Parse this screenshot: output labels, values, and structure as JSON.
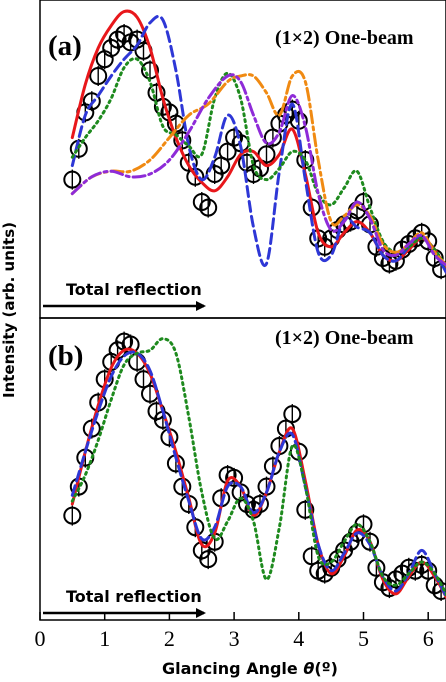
{
  "chart_data": [
    {
      "type": "line",
      "panel_label": "(a)",
      "title": "(1×2) One-beam",
      "annotation": "Total reflection",
      "xlim": [
        0,
        6.3
      ],
      "series": [
        {
          "style": "circles",
          "color": "#000000",
          "x": [
            0.5,
            0.6,
            0.7,
            0.8,
            0.9,
            1.0,
            1.1,
            1.2,
            1.3,
            1.4,
            1.5,
            1.6,
            1.7,
            1.8,
            1.9,
            2.0,
            2.1,
            2.2,
            2.3,
            2.4,
            2.5,
            2.6,
            2.7,
            2.8,
            2.9,
            3.0,
            3.1,
            3.2,
            3.3,
            3.4,
            3.5,
            3.6,
            3.7,
            3.8,
            3.9,
            4.0,
            4.1,
            4.2,
            4.3,
            4.4,
            4.5,
            4.6,
            4.7,
            4.8,
            4.9,
            5.0,
            5.1,
            5.2,
            5.3,
            5.4,
            5.5,
            5.6,
            5.7,
            5.8,
            5.9,
            6.0,
            6.1,
            6.2
          ],
          "y": [
            0.43,
            0.54,
            0.67,
            0.71,
            0.8,
            0.86,
            0.9,
            0.93,
            0.95,
            0.92,
            0.93,
            0.89,
            0.82,
            0.74,
            0.69,
            0.67,
            0.63,
            0.57,
            0.49,
            0.44,
            0.35,
            0.33,
            0.45,
            0.48,
            0.53,
            0.58,
            0.56,
            0.49,
            0.45,
            0.47,
            0.52,
            0.58,
            0.63,
            0.66,
            0.68,
            0.64,
            0.5,
            0.33,
            0.22,
            0.19,
            0.22,
            0.25,
            0.27,
            0.28,
            0.32,
            0.35,
            0.27,
            0.19,
            0.15,
            0.13,
            0.14,
            0.18,
            0.2,
            0.22,
            0.24,
            0.21,
            0.15,
            0.11
          ]
        },
        {
          "style": "solid",
          "color": "#e8171b",
          "x": [
            0.5,
            0.7,
            0.9,
            1.1,
            1.3,
            1.5,
            1.7,
            1.9,
            2.1,
            2.3,
            2.5,
            2.7,
            2.9,
            3.1,
            3.3,
            3.5,
            3.7,
            3.9,
            4.1,
            4.3,
            4.5,
            4.7,
            4.9,
            5.1,
            5.3,
            5.5,
            5.7,
            5.9,
            6.1,
            6.3
          ],
          "y": [
            0.58,
            0.77,
            0.9,
            0.98,
            1.03,
            1.01,
            0.9,
            0.72,
            0.58,
            0.48,
            0.42,
            0.39,
            0.44,
            0.52,
            0.53,
            0.48,
            0.52,
            0.61,
            0.45,
            0.24,
            0.19,
            0.24,
            0.28,
            0.24,
            0.16,
            0.14,
            0.18,
            0.22,
            0.18,
            0.1
          ]
        },
        {
          "style": "dashed",
          "color": "#2e37d6",
          "x": [
            0.5,
            0.7,
            0.9,
            1.1,
            1.3,
            1.5,
            1.7,
            1.9,
            2.1,
            2.3,
            2.5,
            2.7,
            2.9,
            3.1,
            3.3,
            3.5,
            3.7,
            3.9,
            4.1,
            4.3,
            4.5,
            4.7,
            4.9,
            5.1,
            5.3,
            5.5,
            5.7,
            5.9,
            6.1,
            6.3
          ],
          "y": [
            0.48,
            0.66,
            0.73,
            0.8,
            0.86,
            0.91,
            0.99,
            1.0,
            0.82,
            0.55,
            0.43,
            0.51,
            0.66,
            0.55,
            0.26,
            0.13,
            0.46,
            0.7,
            0.43,
            0.17,
            0.16,
            0.29,
            0.26,
            0.24,
            0.16,
            0.14,
            0.19,
            0.23,
            0.17,
            0.09
          ]
        },
        {
          "style": "dotted",
          "color": "#1e8a1e",
          "x": [
            0.5,
            0.7,
            0.9,
            1.1,
            1.3,
            1.5,
            1.7,
            1.9,
            2.1,
            2.3,
            2.5,
            2.7,
            2.9,
            3.1,
            3.3,
            3.5,
            3.7,
            3.9,
            4.1,
            4.3,
            4.5,
            4.7,
            4.9,
            5.1,
            5.3,
            5.5,
            5.7,
            5.9,
            6.1,
            6.3
          ],
          "y": [
            0.51,
            0.58,
            0.64,
            0.72,
            0.83,
            0.86,
            0.78,
            0.62,
            0.59,
            0.55,
            0.52,
            0.72,
            0.81,
            0.72,
            0.48,
            0.43,
            0.47,
            0.53,
            0.5,
            0.38,
            0.34,
            0.4,
            0.46,
            0.33,
            0.21,
            0.17,
            0.19,
            0.22,
            0.18,
            0.11
          ]
        },
        {
          "style": "dash-dot",
          "color": "#f08a12",
          "x": [
            0.5,
            0.8,
            1.1,
            1.4,
            1.7,
            2.0,
            2.3,
            2.6,
            2.9,
            3.1,
            3.3,
            3.5,
            3.7,
            3.9,
            4.1,
            4.3,
            4.5,
            4.7,
            4.9,
            5.1,
            5.3,
            5.5,
            5.7,
            5.9,
            6.1,
            6.3
          ],
          "y": [
            0.38,
            0.44,
            0.46,
            0.46,
            0.5,
            0.58,
            0.66,
            0.7,
            0.78,
            0.8,
            0.8,
            0.74,
            0.66,
            0.8,
            0.78,
            0.5,
            0.28,
            0.3,
            0.34,
            0.3,
            0.2,
            0.17,
            0.2,
            0.24,
            0.17,
            0.12
          ]
        },
        {
          "style": "dash-dot",
          "color": "#8e2bd8",
          "x": [
            0.5,
            0.8,
            1.1,
            1.4,
            1.7,
            2.0,
            2.3,
            2.6,
            2.9,
            3.1,
            3.3,
            3.5,
            3.7,
            3.9,
            4.1,
            4.3,
            4.5,
            4.7,
            4.9,
            5.1,
            5.3,
            5.5,
            5.7,
            5.9,
            6.1,
            6.3
          ],
          "y": [
            0.38,
            0.44,
            0.46,
            0.44,
            0.45,
            0.5,
            0.6,
            0.72,
            0.8,
            0.78,
            0.66,
            0.56,
            0.6,
            0.73,
            0.62,
            0.38,
            0.25,
            0.28,
            0.35,
            0.29,
            0.18,
            0.16,
            0.2,
            0.23,
            0.16,
            0.12
          ]
        }
      ]
    },
    {
      "type": "line",
      "panel_label": "(b)",
      "title": "(1×2) One-beam",
      "annotation": "Total reflection",
      "xlim": [
        0,
        6.3
      ],
      "xlabel_prefix": "Glancing Angle ",
      "xlabel_symbol": "θ",
      "xlabel_suffix": "(º)",
      "xticks": [
        "0",
        "1",
        "2",
        "3",
        "4",
        "5",
        "6"
      ],
      "series": [
        {
          "style": "circles",
          "color": "#000000",
          "x": [
            0.5,
            0.6,
            0.7,
            0.8,
            0.9,
            1.0,
            1.1,
            1.2,
            1.3,
            1.4,
            1.5,
            1.6,
            1.7,
            1.8,
            1.9,
            2.0,
            2.1,
            2.2,
            2.3,
            2.4,
            2.5,
            2.6,
            2.7,
            2.8,
            2.9,
            3.0,
            3.1,
            3.2,
            3.3,
            3.4,
            3.5,
            3.6,
            3.7,
            3.8,
            3.9,
            4.0,
            4.1,
            4.2,
            4.3,
            4.4,
            4.5,
            4.6,
            4.7,
            4.8,
            4.9,
            5.0,
            5.1,
            5.2,
            5.3,
            5.4,
            5.5,
            5.6,
            5.7,
            5.8,
            5.9,
            6.0,
            6.1,
            6.2
          ],
          "y": [
            0.36,
            0.46,
            0.56,
            0.66,
            0.75,
            0.83,
            0.89,
            0.93,
            0.96,
            0.95,
            0.89,
            0.83,
            0.78,
            0.72,
            0.69,
            0.63,
            0.54,
            0.46,
            0.4,
            0.32,
            0.24,
            0.21,
            0.27,
            0.42,
            0.5,
            0.49,
            0.44,
            0.4,
            0.38,
            0.4,
            0.46,
            0.53,
            0.6,
            0.66,
            0.71,
            0.58,
            0.38,
            0.22,
            0.17,
            0.16,
            0.18,
            0.21,
            0.24,
            0.27,
            0.3,
            0.33,
            0.27,
            0.18,
            0.13,
            0.11,
            0.14,
            0.16,
            0.18,
            0.17,
            0.19,
            0.17,
            0.12,
            0.1
          ]
        },
        {
          "style": "solid",
          "color": "#e8171b",
          "x": [
            0.5,
            0.7,
            0.9,
            1.1,
            1.3,
            1.5,
            1.7,
            1.9,
            2.1,
            2.3,
            2.5,
            2.7,
            2.9,
            3.1,
            3.3,
            3.5,
            3.7,
            3.9,
            4.1,
            4.3,
            4.5,
            4.7,
            4.9,
            5.1,
            5.3,
            5.5,
            5.7,
            5.9,
            6.1,
            6.3
          ],
          "y": [
            0.4,
            0.58,
            0.74,
            0.87,
            0.93,
            0.92,
            0.85,
            0.72,
            0.58,
            0.42,
            0.26,
            0.3,
            0.48,
            0.46,
            0.36,
            0.44,
            0.58,
            0.66,
            0.48,
            0.26,
            0.16,
            0.22,
            0.31,
            0.27,
            0.14,
            0.09,
            0.15,
            0.2,
            0.15,
            0.07
          ]
        },
        {
          "style": "dashed",
          "color": "#2e37d6",
          "x": [
            0.5,
            0.7,
            0.9,
            1.1,
            1.3,
            1.5,
            1.7,
            1.9,
            2.1,
            2.3,
            2.5,
            2.7,
            2.9,
            3.1,
            3.3,
            3.5,
            3.7,
            3.9,
            4.1,
            4.3,
            4.5,
            4.7,
            4.9,
            5.1,
            5.3,
            5.5,
            5.7,
            5.9,
            6.1,
            6.3
          ],
          "y": [
            0.43,
            0.58,
            0.72,
            0.84,
            0.91,
            0.92,
            0.86,
            0.72,
            0.56,
            0.41,
            0.28,
            0.32,
            0.46,
            0.46,
            0.37,
            0.44,
            0.58,
            0.64,
            0.46,
            0.26,
            0.17,
            0.23,
            0.3,
            0.26,
            0.15,
            0.1,
            0.16,
            0.24,
            0.16,
            0.07
          ]
        },
        {
          "style": "dotted",
          "color": "#1e8a1e",
          "x": [
            0.5,
            0.7,
            0.9,
            1.1,
            1.3,
            1.5,
            1.7,
            1.9,
            2.1,
            2.3,
            2.5,
            2.7,
            2.9,
            3.1,
            3.3,
            3.5,
            3.7,
            3.9,
            4.1,
            4.3,
            4.5,
            4.7,
            4.9,
            5.1,
            5.3,
            5.5,
            5.7,
            5.9,
            6.1,
            6.3
          ],
          "y": [
            0.41,
            0.5,
            0.62,
            0.76,
            0.88,
            0.92,
            0.93,
            0.97,
            0.92,
            0.7,
            0.44,
            0.28,
            0.34,
            0.42,
            0.34,
            0.14,
            0.32,
            0.6,
            0.46,
            0.22,
            0.2,
            0.27,
            0.33,
            0.27,
            0.15,
            0.12,
            0.16,
            0.2,
            0.16,
            0.08
          ]
        }
      ]
    }
  ],
  "axis": {
    "ylabel": "Intensity (arb. units)"
  }
}
